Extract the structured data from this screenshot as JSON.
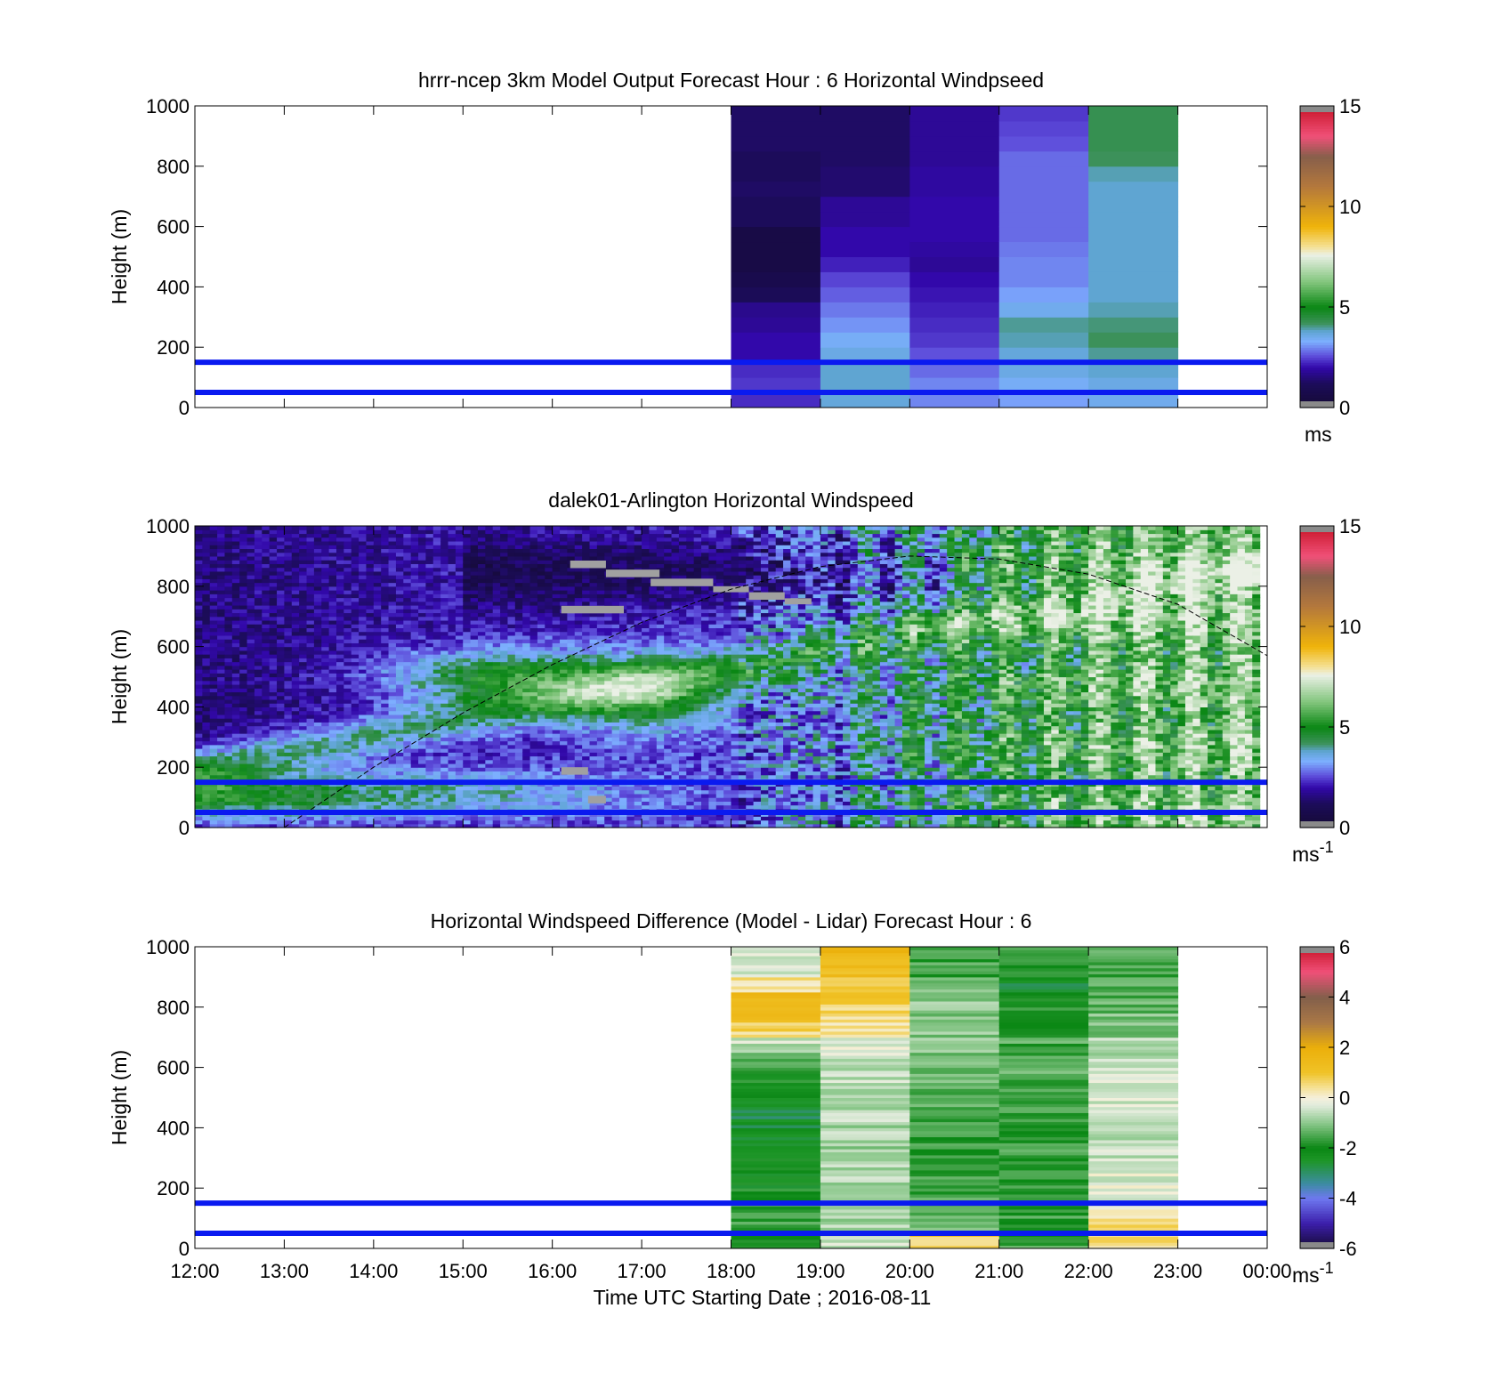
{
  "chart_data": [
    {
      "type": "heatmap",
      "title": "hrrr-ncep 3km Model Output   Forecast Hour : 6 Horizontal Windpseed",
      "ylabel": "Height (m)",
      "xlabel": "",
      "x_ticks": [
        "12:00",
        "13:00",
        "14:00",
        "15:00",
        "16:00",
        "17:00",
        "18:00",
        "19:00",
        "20:00",
        "21:00",
        "22:00",
        "23:00",
        "00:00"
      ],
      "x_range_hours": [
        12,
        24
      ],
      "y_ticks": [
        0,
        200,
        400,
        600,
        800,
        1000
      ],
      "ylim": [
        0,
        1000
      ],
      "colorbar": {
        "ticks": [
          0,
          5,
          10,
          15
        ],
        "range": [
          0,
          15
        ],
        "unit": "ms"
      },
      "reference_lines_m": [
        50,
        150
      ],
      "hour_starts": [
        18,
        19,
        20,
        21,
        22
      ],
      "height_levels": [
        25,
        75,
        125,
        175,
        225,
        275,
        325,
        375,
        425,
        475,
        525,
        575,
        625,
        675,
        725,
        775,
        825,
        875,
        925,
        975
      ],
      "columns": [
        [
          2.3,
          2.4,
          2.3,
          2.0,
          2.0,
          1.8,
          1.7,
          1.1,
          0.8,
          0.6,
          0.6,
          0.6,
          1.2,
          1.2,
          1.3,
          1.2,
          1.2,
          1.3,
          1.3,
          1.3
        ],
        [
          3.7,
          3.8,
          3.8,
          3.6,
          3.4,
          3.1,
          2.9,
          2.7,
          2.5,
          2.2,
          2.0,
          2.0,
          1.8,
          1.8,
          1.4,
          1.4,
          1.3,
          1.3,
          1.3,
          1.3
        ],
        [
          3.0,
          3.0,
          2.8,
          2.6,
          2.4,
          2.3,
          2.2,
          2.1,
          2.0,
          1.8,
          1.9,
          2.0,
          2.0,
          2.0,
          1.9,
          1.9,
          1.8,
          1.8,
          1.8,
          1.8
        ],
        [
          3.2,
          3.4,
          3.6,
          3.7,
          3.9,
          4.0,
          3.5,
          3.2,
          3.0,
          3.0,
          2.9,
          2.8,
          2.8,
          2.8,
          2.8,
          2.8,
          2.8,
          2.6,
          2.5,
          2.4
        ],
        [
          3.5,
          3.6,
          3.8,
          4.0,
          4.2,
          4.1,
          3.9,
          3.8,
          3.8,
          3.8,
          3.8,
          3.8,
          3.8,
          3.8,
          3.8,
          3.9,
          4.2,
          4.3,
          4.3,
          4.3
        ]
      ]
    },
    {
      "type": "heatmap",
      "title": "dalek01-Arlington  Horizontal Windspeed",
      "ylabel": "Height (m)",
      "xlabel": "",
      "x_ticks": [
        "12:00",
        "13:00",
        "14:00",
        "15:00",
        "16:00",
        "17:00",
        "18:00",
        "19:00",
        "20:00",
        "21:00",
        "22:00",
        "23:00",
        "00:00"
      ],
      "x_range_hours": [
        12,
        24
      ],
      "y_ticks": [
        0,
        200,
        400,
        600,
        800,
        1000
      ],
      "ylim": [
        0,
        1000
      ],
      "colorbar": {
        "ticks": [
          0,
          5,
          10,
          15
        ],
        "range": [
          0,
          15
        ],
        "unit": "ms",
        "unit_superscript": "-1"
      },
      "reference_lines_m": [
        50,
        150
      ],
      "data_extent_hours": [
        12,
        23.85
      ],
      "annotation_curve": {
        "style": "dashed",
        "points": [
          [
            13.0,
            0
          ],
          [
            14.0,
            200
          ],
          [
            15.0,
            380
          ],
          [
            16.0,
            540
          ],
          [
            17.0,
            680
          ],
          [
            18.0,
            790
          ],
          [
            19.0,
            865
          ],
          [
            20.0,
            900
          ],
          [
            21.0,
            890
          ],
          [
            22.0,
            840
          ],
          [
            23.0,
            740
          ],
          [
            24.0,
            570
          ]
        ]
      },
      "missing_segments": [
        {
          "x": [
            16.1,
            16.8
          ],
          "height": [
            710,
            735
          ]
        },
        {
          "x": [
            16.1,
            16.4
          ],
          "height": [
            175,
            200
          ]
        },
        {
          "x": [
            16.4,
            16.6
          ],
          "height": [
            80,
            105
          ]
        },
        {
          "x": [
            16.2,
            16.6
          ],
          "height": [
            860,
            885
          ]
        },
        {
          "x": [
            16.6,
            17.2
          ],
          "height": [
            830,
            855
          ]
        },
        {
          "x": [
            17.1,
            17.8
          ],
          "height": [
            800,
            825
          ]
        },
        {
          "x": [
            17.8,
            18.2
          ],
          "height": [
            780,
            800
          ]
        },
        {
          "x": [
            18.2,
            18.6
          ],
          "height": [
            755,
            780
          ]
        },
        {
          "x": [
            18.6,
            18.9
          ],
          "height": [
            740,
            760
          ]
        }
      ]
    },
    {
      "type": "heatmap",
      "title": "Horizontal Windspeed Difference (Model - Lidar) Forecast Hour : 6",
      "xlabel": "Time UTC  Starting Date ; 2016-08-11",
      "ylabel": "Height (m)",
      "x_ticks": [
        "12:00",
        "13:00",
        "14:00",
        "15:00",
        "16:00",
        "17:00",
        "18:00",
        "19:00",
        "20:00",
        "21:00",
        "22:00",
        "23:00",
        "00:00"
      ],
      "x_range_hours": [
        12,
        24
      ],
      "y_ticks": [
        0,
        200,
        400,
        600,
        800,
        1000
      ],
      "ylim": [
        0,
        1000
      ],
      "colorbar": {
        "ticks": [
          -6,
          -4,
          -2,
          0,
          2,
          4,
          6
        ],
        "range": [
          -6,
          6
        ],
        "unit": "ms",
        "unit_superscript": "-1"
      },
      "reference_lines_m": [
        50,
        150
      ],
      "hour_starts": [
        18,
        19,
        20,
        21,
        22
      ],
      "height_levels": [
        25,
        75,
        125,
        175,
        225,
        275,
        325,
        375,
        425,
        475,
        525,
        575,
        625,
        675,
        725,
        775,
        825,
        875,
        925,
        975
      ],
      "columns": [
        [
          -2.0,
          -1.6,
          -1.8,
          -1.9,
          -2.2,
          -2.1,
          -2.3,
          -2.6,
          -2.7,
          -2.6,
          -2.4,
          -2.0,
          -1.4,
          -0.6,
          0.6,
          1.2,
          1.4,
          0.5,
          -0.2,
          -0.5
        ],
        [
          -0.4,
          -0.7,
          -0.6,
          -0.6,
          -0.8,
          -0.8,
          -0.9,
          -0.8,
          -0.7,
          -0.6,
          -0.6,
          -0.5,
          -0.4,
          -0.2,
          0.2,
          0.6,
          0.9,
          1.1,
          1.3,
          1.5
        ],
        [
          0.8,
          -1.4,
          -1.5,
          -1.6,
          -1.6,
          -1.5,
          -1.7,
          -1.6,
          -1.6,
          -1.5,
          -1.4,
          -1.2,
          -1.2,
          -1.0,
          -1.0,
          -1.0,
          -0.9,
          -1.2,
          -1.6,
          -1.8
        ],
        [
          -1.6,
          -1.8,
          -1.7,
          -1.8,
          -1.8,
          -1.9,
          -1.7,
          -1.8,
          -1.7,
          -1.6,
          -1.5,
          -1.4,
          -1.4,
          -1.5,
          -1.6,
          -1.8,
          -2.2,
          -2.5,
          -1.8,
          -1.4
        ],
        [
          0.4,
          0.6,
          -0.2,
          -0.4,
          -0.3,
          -0.4,
          -0.6,
          -0.5,
          -0.4,
          -0.3,
          -0.2,
          -0.4,
          -0.6,
          -0.8,
          -1.0,
          -1.2,
          -1.4,
          -1.5,
          -1.6,
          -1.6
        ]
      ]
    }
  ]
}
